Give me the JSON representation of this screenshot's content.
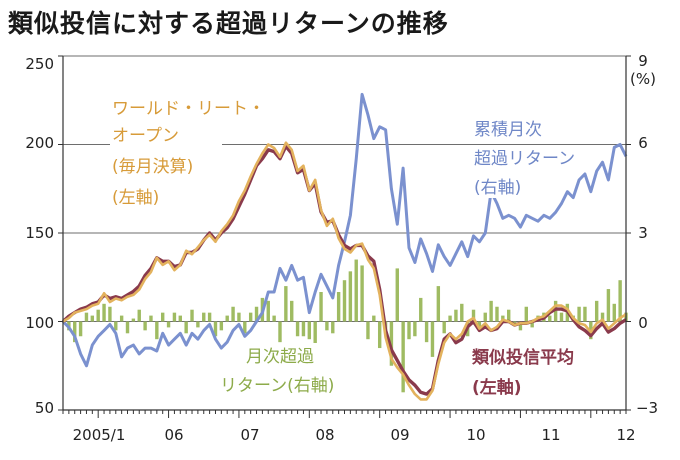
{
  "title": "類似投信に対する超過リターンの推移",
  "chart_data": {
    "type": "line",
    "title": "類似投信に対する超過リターンの推移",
    "left_axis": {
      "ylim": [
        50,
        250
      ],
      "ticks": [
        50,
        100,
        150,
        200,
        250
      ],
      "tick_labels": [
        "50",
        "100",
        "150",
        "200",
        "250"
      ]
    },
    "right_axis": {
      "unit_label": "(%)",
      "ylim": [
        -3,
        9
      ],
      "ticks": [
        -3,
        0,
        3,
        6,
        9
      ],
      "tick_labels": [
        "−3",
        "0",
        "3",
        "6",
        "9"
      ]
    },
    "x_axis": {
      "range": [
        0,
        96
      ],
      "ticks": [
        {
          "x": 6,
          "label": "2005/1"
        },
        {
          "x": 18,
          "label": "06"
        },
        {
          "x": 30,
          "label": "07"
        },
        {
          "x": 42,
          "label": "08"
        },
        {
          "x": 54,
          "label": "09"
        },
        {
          "x": 66,
          "label": "10"
        },
        {
          "x": 78,
          "label": "11"
        },
        {
          "x": 90,
          "label": "12"
        }
      ]
    },
    "colors": {
      "reit": "#e3b25d",
      "peer": "#8a3a4c",
      "cumulative": "#7b91cf",
      "monthly": "#9fbb62",
      "grid": "#6e6e6e"
    },
    "series": [
      {
        "name": "ワールド・リート・オープン(毎月決算)(左軸)",
        "axis": "left",
        "kind": "line",
        "values": [
          100,
          102,
          105,
          106,
          107,
          109,
          110,
          116,
          111,
          113,
          112,
          114,
          115,
          118,
          124,
          128,
          136,
          132,
          134,
          129,
          132,
          140,
          138,
          142,
          146,
          149,
          145,
          151,
          155,
          160,
          168,
          174,
          182,
          189,
          195,
          200,
          198,
          193,
          201,
          197,
          185,
          188,
          174,
          180,
          163,
          154,
          158,
          147,
          141,
          139,
          143,
          144,
          135,
          130,
          115,
          91,
          79,
          74,
          70,
          64,
          59,
          56,
          56,
          61,
          76,
          88,
          93,
          90,
          93,
          100,
          102,
          96,
          99,
          95,
          97,
          101,
          100,
          98,
          99,
          99,
          100,
          102,
          103,
          106,
          109,
          109,
          107,
          102,
          99,
          98,
          94,
          99,
          101,
          96,
          99,
          102,
          104
        ]
      },
      {
        "name": "類似投信平均(左軸)",
        "axis": "left",
        "kind": "line",
        "values": [
          100,
          103,
          105,
          107,
          108,
          110,
          111,
          115,
          113,
          114,
          113,
          115,
          117,
          120,
          126,
          130,
          136,
          134,
          134,
          131,
          132,
          139,
          139,
          141,
          146,
          150,
          146,
          150,
          153,
          158,
          165,
          172,
          180,
          188,
          192,
          197,
          196,
          192,
          199,
          195,
          184,
          186,
          174,
          178,
          162,
          156,
          157,
          149,
          143,
          141,
          143,
          143,
          137,
          134,
          118,
          95,
          84,
          78,
          72,
          67,
          64,
          60,
          59,
          62,
          78,
          90,
          93,
          88,
          90,
          97,
          100,
          95,
          97,
          95,
          96,
          100,
          100,
          98,
          99,
          99,
          100,
          101,
          102,
          105,
          107,
          107,
          106,
          101,
          97,
          95,
          92,
          96,
          99,
          94,
          96,
          99,
          101
        ]
      },
      {
        "name": "累積月次超過リターン(右軸)",
        "axis": "right",
        "kind": "line",
        "values": [
          0,
          -0.2,
          -0.5,
          -1.1,
          -1.5,
          -0.8,
          -0.5,
          -0.3,
          -0.1,
          -0.4,
          -1.2,
          -0.9,
          -0.8,
          -1.1,
          -0.9,
          -0.9,
          -1.0,
          -0.4,
          -0.8,
          -0.6,
          -0.4,
          -0.8,
          -0.4,
          -0.6,
          -0.3,
          -0.1,
          -0.6,
          -0.9,
          -0.7,
          -0.3,
          -0.1,
          -0.5,
          -0.3,
          0.0,
          0.3,
          1.0,
          1.0,
          1.8,
          1.4,
          1.9,
          1.4,
          1.5,
          0.3,
          1.0,
          1.6,
          1.2,
          0.8,
          1.9,
          2.7,
          3.6,
          5.5,
          7.7,
          7.0,
          6.2,
          6.6,
          6.5,
          4.5,
          3.3,
          5.2,
          2.5,
          2.0,
          2.8,
          2.3,
          1.7,
          2.6,
          2.2,
          1.9,
          2.3,
          2.7,
          2.2,
          2.9,
          2.7,
          3.0,
          4.4,
          4.0,
          3.5,
          3.6,
          3.5,
          3.2,
          3.6,
          3.5,
          3.4,
          3.6,
          3.5,
          3.7,
          4.0,
          4.4,
          4.2,
          4.8,
          5.0,
          4.4,
          5.1,
          5.4,
          4.8,
          5.9,
          6.0,
          5.6
        ]
      },
      {
        "name": "月次超過(右軸)",
        "axis": "right",
        "kind": "bar",
        "values": [
          0,
          -0.3,
          -0.7,
          -0.5,
          0.3,
          0.2,
          0.4,
          0.6,
          0.5,
          -0.3,
          0.2,
          -0.4,
          0.1,
          0.4,
          -0.3,
          0.2,
          -0.6,
          0.3,
          -0.2,
          0.3,
          0.2,
          -0.4,
          0.4,
          -0.2,
          0.3,
          0.3,
          -0.5,
          -0.3,
          0.2,
          0.5,
          0.3,
          -0.4,
          0.3,
          0.5,
          0.8,
          0.7,
          0.2,
          -0.7,
          1.2,
          0.7,
          -0.5,
          -0.5,
          -0.6,
          -1.1,
          1.0,
          -0.3,
          -0.4,
          1.0,
          1.4,
          1.7,
          2.1,
          1.9,
          -0.6,
          0.2,
          -0.9,
          -0.3,
          -1.5,
          1.8,
          -2.4,
          -0.6,
          -0.5,
          0.8,
          -0.7,
          -1.2,
          1.2,
          -0.4,
          0.2,
          0.4,
          0.6,
          -0.5,
          0.4,
          -0.3,
          0.3,
          0.7,
          0.5,
          0.2,
          0.4,
          -0.1,
          -0.3,
          0.5,
          -0.2,
          0.2,
          0.3,
          0.2,
          0.7,
          0.3,
          0.6,
          0.2,
          0.5,
          0.5,
          -0.6,
          0.7,
          0.3,
          1.1,
          0.6,
          1.4,
          0.3
        ]
      }
    ],
    "annotations": [
      {
        "lines": [
          "ワールド・リート・",
          "オープン",
          "(毎月決算)",
          "(左軸)"
        ],
        "color": "#d79b39"
      },
      {
        "lines": [
          "累積月次",
          "超過リターン",
          "(右軸)"
        ],
        "color": "#6f87c7"
      },
      {
        "lines": [
          "月次超過",
          "リターン(右軸)"
        ],
        "color": "#8dab4a"
      },
      {
        "lines": [
          "類似投信平均",
          "(左軸)"
        ],
        "color": "#8a3a4c"
      }
    ]
  }
}
